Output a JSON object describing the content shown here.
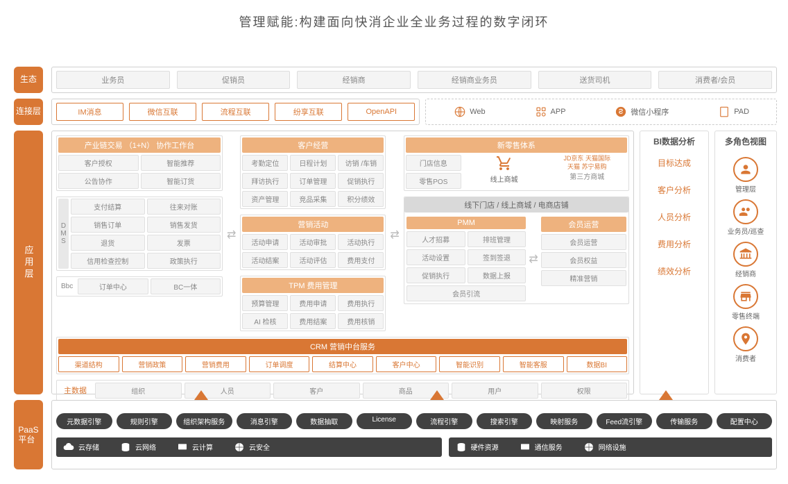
{
  "title": "管理赋能:构建面向快消企业全业务过程的数字闭环",
  "layers": {
    "eco": "生态",
    "conn": "连接层",
    "app": "应用层",
    "paas": "PaaS\n平台"
  },
  "eco_roles": [
    "业务员",
    "促销员",
    "经销商",
    "经销商业务员",
    "送货司机",
    "消费者/会员"
  ],
  "connect_left": [
    "IM消息",
    "微信互联",
    "流程互联",
    "纷享互联",
    "OpenAPI"
  ],
  "connect_right": [
    {
      "icon": "globe",
      "label": "Web"
    },
    {
      "icon": "app",
      "label": "APP"
    },
    {
      "icon": "mini",
      "label": "微信小程序"
    },
    {
      "icon": "pad",
      "label": "PAD"
    }
  ],
  "col1": {
    "hd": "产业链交易 （1+N） 协作工作台",
    "r1": [
      "客户授权",
      "智能推荐"
    ],
    "r2": [
      "公告协作",
      "智能订货"
    ],
    "dms_lbl": "DMS",
    "dms": [
      "支付结算",
      "往来对账",
      "销售订单",
      "销售发货",
      "退货",
      "发票",
      "信用检查控制",
      "政策执行"
    ],
    "bbc_lbl": "Bbc",
    "bbc": [
      "订单中心",
      "BC一体"
    ]
  },
  "col2": {
    "s1": {
      "hd": "客户经营",
      "cells": [
        "考勤定位",
        "日程计划",
        "访销 /车销",
        "拜访执行",
        "订单管理",
        "促销执行",
        "资产管理",
        "竞品采集",
        "积分绩效"
      ]
    },
    "s2": {
      "hd": "营销活动",
      "cells": [
        "活动申请",
        "活动审批",
        "活动执行",
        "活动结案",
        "活动评估",
        "费用支付"
      ]
    },
    "s3": {
      "hd": "TPM 费用管理",
      "cells": [
        "预算管理",
        "费用申请",
        "费用执行",
        "AI 检核",
        "费用结案",
        "费用核销"
      ]
    }
  },
  "col3": {
    "hd": "新零售体系",
    "top": [
      "门店信息",
      "零售POS"
    ],
    "mall": [
      "线上商城",
      "第三方商城"
    ],
    "brands": "JD / 天猫 / 苏宁",
    "sub_hd": "线下门店 / 线上商城 / 电商店铺",
    "pmm": {
      "hd": "PMM",
      "cells": [
        "人才招募",
        "排班管理",
        "活动设置",
        "签到签退",
        "促销执行",
        "数据上报",
        "会员引流"
      ]
    },
    "mem": {
      "hd": "会员运营",
      "cells": [
        "会员运营",
        "会员权益",
        "精准营销"
      ]
    }
  },
  "crm": {
    "hd": "CRM 营销中台服务",
    "cells": [
      "渠道结构",
      "营销政策",
      "营销费用",
      "订单调度",
      "结算中心",
      "客户中心",
      "智能识别",
      "智能客服",
      "数据BI"
    ]
  },
  "master": {
    "lbl": "主数据",
    "cells": [
      "组织",
      "人员",
      "客户",
      "商品",
      "用户",
      "权限"
    ]
  },
  "bi": {
    "hd": "BI数据分析",
    "items": [
      "目标达成",
      "客户分析",
      "人员分析",
      "费用分析",
      "绩效分析"
    ]
  },
  "roles": {
    "hd": "多角色视图",
    "items": [
      {
        "icon": "mgr",
        "label": "管理层"
      },
      {
        "icon": "sales",
        "label": "业务员/巡查"
      },
      {
        "icon": "dist",
        "label": "经销商"
      },
      {
        "icon": "store",
        "label": "零售终端"
      },
      {
        "icon": "cons",
        "label": "消费者"
      }
    ]
  },
  "paas": [
    "元数据引擎",
    "规则引擎",
    "组织架构服务",
    "消息引擎",
    "数据抽取",
    "License",
    "流程引擎",
    "搜索引擎",
    "映射服务",
    "Feed流引擎",
    "传输服务",
    "配置中心"
  ],
  "iaas_left": [
    "云存储",
    "云网络",
    "云计算",
    "云安全"
  ],
  "iaas_right": [
    "硬件资源",
    "通信服务",
    "网络设施"
  ],
  "colors": {
    "orange": "#d97734",
    "orange_light": "#eeb27e",
    "dark": "#414141",
    "grey_bg": "#f4f4f4",
    "border": "#d0d0d0"
  }
}
